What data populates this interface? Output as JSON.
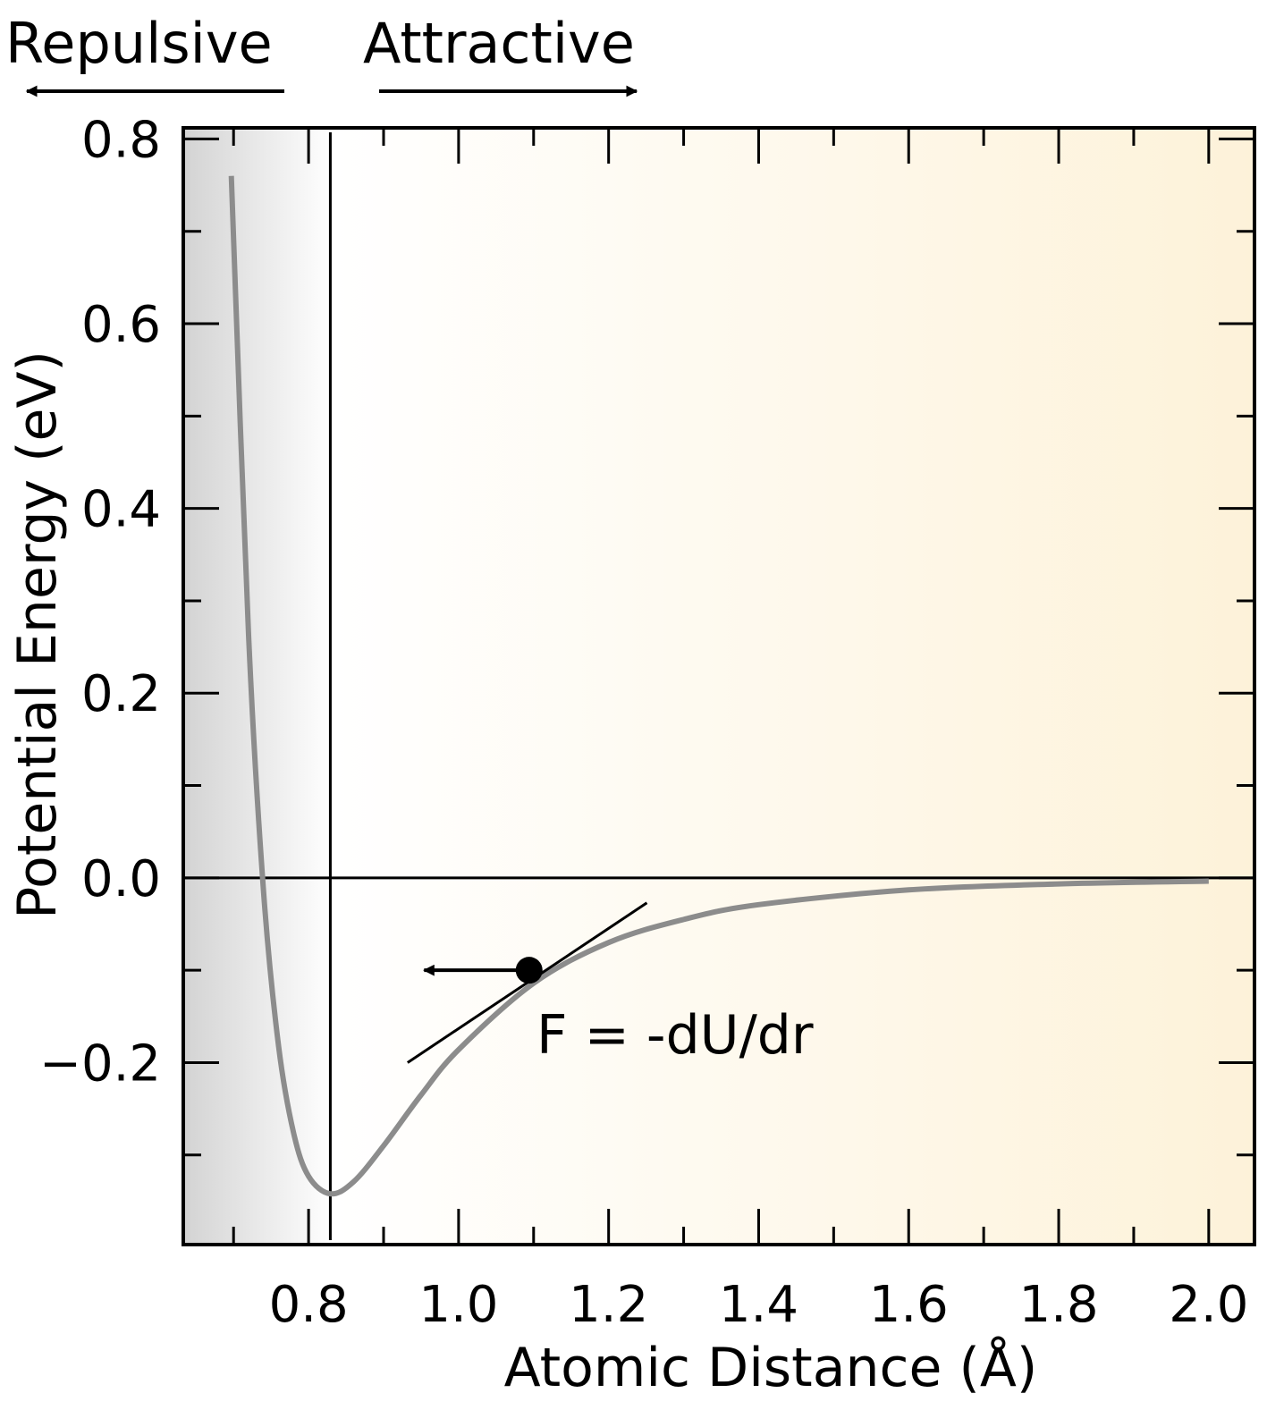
{
  "chart_data": {
    "type": "line",
    "title": "",
    "xlabel": "Atomic Distance (Å)",
    "ylabel": "Potential Energy (eV)",
    "xlim": [
      0.633,
      2.061
    ],
    "ylim": [
      -0.397,
      0.812
    ],
    "x_ticks": [
      0.8,
      1.0,
      1.2,
      1.4,
      1.6,
      1.8,
      2.0
    ],
    "x_tick_labels": [
      "0.8",
      "1.0",
      "1.2",
      "1.4",
      "1.6",
      "1.8",
      "2.0"
    ],
    "y_ticks": [
      -0.2,
      0.0,
      0.2,
      0.4,
      0.6,
      0.8
    ],
    "y_tick_labels": [
      "−0.2",
      "0.0",
      "0.2",
      "0.4",
      "0.6",
      "0.8"
    ],
    "minor_tick_step_x": 0.1,
    "minor_tick_step_y": 0.1,
    "grid": false,
    "series": [
      {
        "color": "#8c8c8c",
        "x": [
          0.697,
          0.72,
          0.74,
          0.76,
          0.78,
          0.8,
          0.829,
          0.86,
          0.9,
          0.95,
          1.0,
          1.1,
          1.2,
          1.3,
          1.4,
          1.6,
          1.8,
          2.0
        ],
        "y": [
          0.76,
          0.263,
          -0.015,
          -0.182,
          -0.276,
          -0.323,
          -0.342,
          -0.329,
          -0.29,
          -0.235,
          -0.186,
          -0.114,
          -0.07,
          -0.045,
          -0.029,
          -0.013,
          -0.0065,
          -0.0035
        ]
      }
    ],
    "reference_lines": {
      "vertical_x": 0.829,
      "horizontal_y": 0.0
    },
    "annotations": {
      "point": {
        "x": 1.094,
        "y": -0.1
      },
      "tangent": {
        "x1": 0.932,
        "y1": -0.2,
        "x2": 1.251,
        "y2": -0.027
      },
      "force_arrow_to_x": 0.954,
      "force_label": "F = -dU/dr",
      "repulsive_label": "Repulsive",
      "attractive_label": "Attractive"
    },
    "background": {
      "repulsive_color": "#d3d3d3",
      "neutral_color": "#ffffff",
      "attractive_color": "#fdf2d9"
    }
  }
}
